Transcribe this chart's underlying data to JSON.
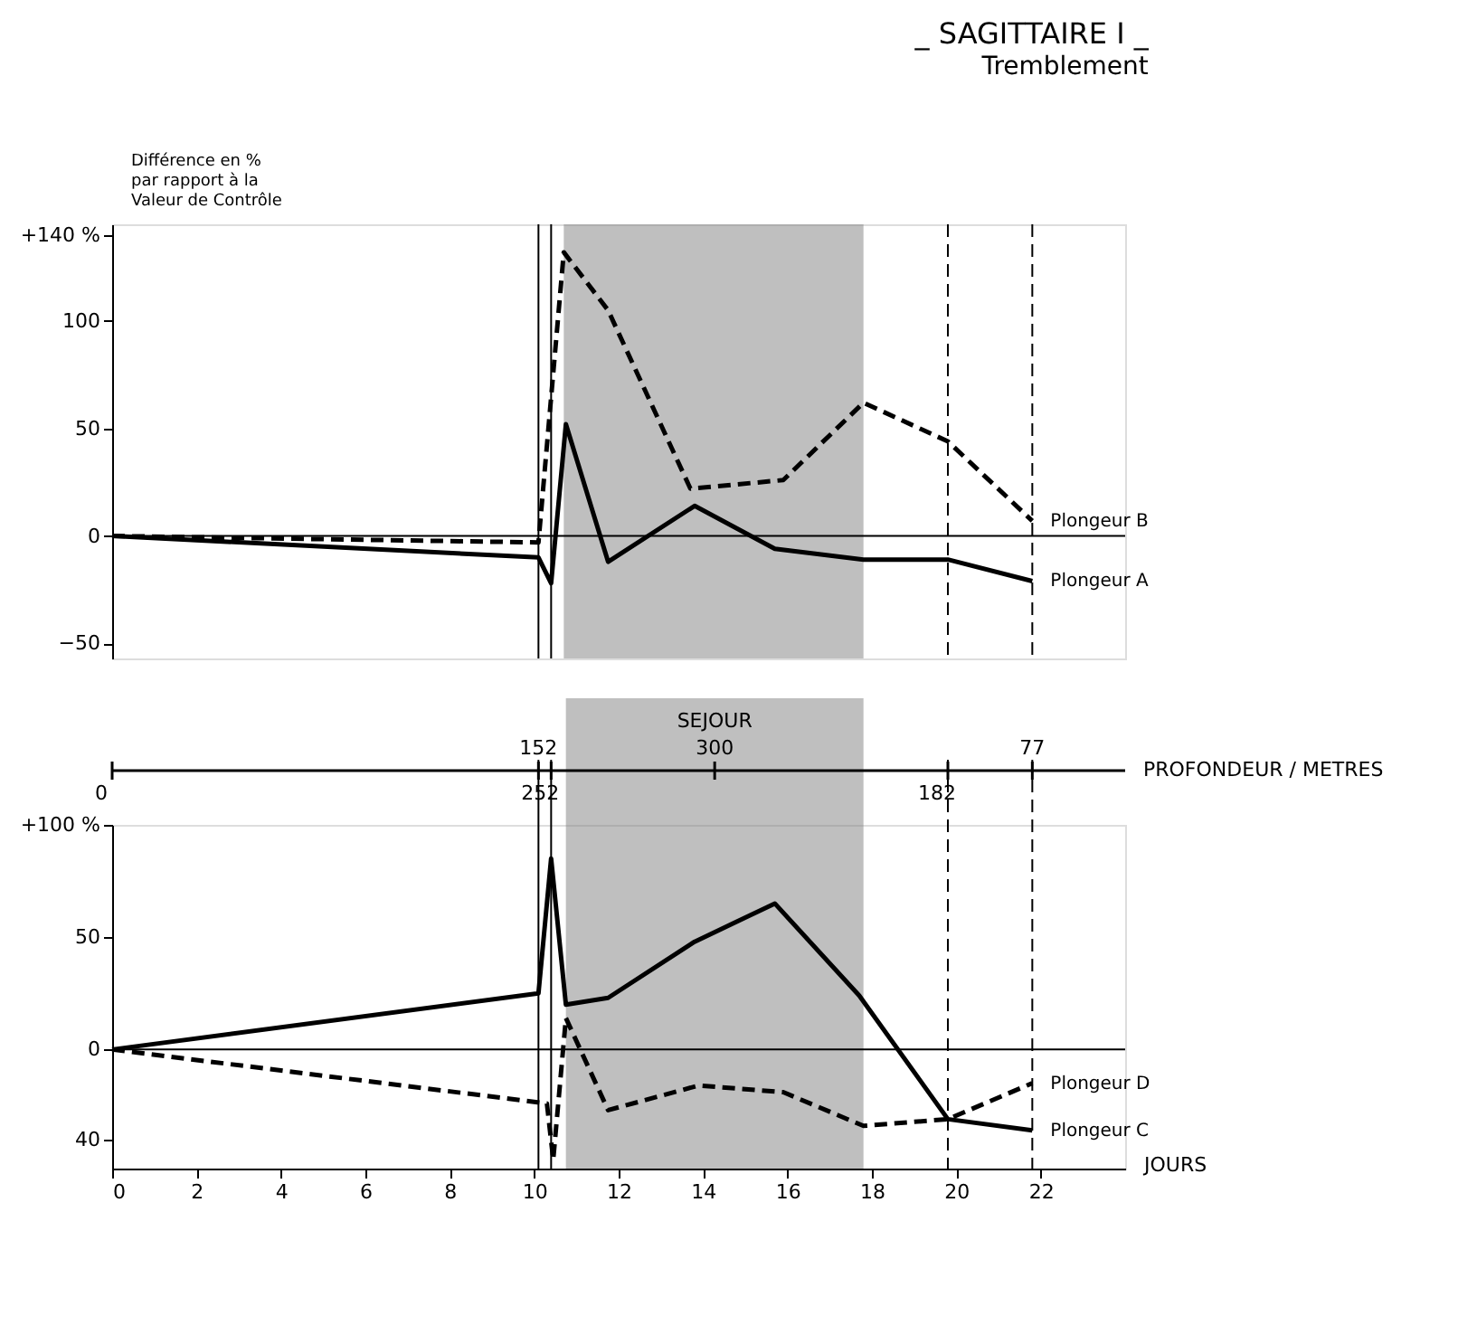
{
  "chart_data": [
    {
      "type": "line",
      "title": "_ SAGITTAIRE I _",
      "subtitle": "Tremblement",
      "ylabel": "Différence en % par rapport à la Valeur de Contrôle",
      "xlim": [
        0,
        24
      ],
      "ylim": [
        -57,
        145
      ],
      "yticks": [
        {
          "value": 140,
          "label": "+140 %"
        },
        100,
        50,
        0,
        -50
      ],
      "tick_labels": "y",
      "series": [
        {
          "name": "Plongeur A",
          "color": "#000000",
          "line_style": "solid",
          "x": [
            0,
            10.1,
            10.4,
            10.75,
            11.75,
            13.8,
            15.7,
            17.8,
            19.8,
            21.8
          ],
          "values": [
            0,
            -10,
            -22,
            52,
            -12,
            14,
            -6,
            -11,
            -11,
            -21
          ]
        },
        {
          "name": "Plongeur B",
          "color": "#000000",
          "line_style": "dashed",
          "x": [
            0,
            10.1,
            10.7,
            11.75,
            13.7,
            15.9,
            17.8,
            19.8,
            21.8
          ],
          "values": [
            0,
            -3,
            132,
            105,
            22,
            26,
            62,
            44,
            7
          ]
        }
      ],
      "bands": [
        {
          "axis": "x",
          "from": 10.7,
          "to": 17.8,
          "color": "#808080"
        }
      ],
      "ref_lines": [
        {
          "axis": "y",
          "value": 0
        },
        {
          "axis": "x",
          "value": 10.1
        },
        {
          "axis": "x",
          "value": 10.4
        },
        {
          "axis": "x",
          "value": 19.8,
          "line_style": "dashed"
        },
        {
          "axis": "x",
          "value": 21.8,
          "line_style": "dashed"
        }
      ]
    },
    {
      "type": "line",
      "xlabel": "JOURS",
      "x2label": "PROFONDEUR / METRES",
      "xlim": [
        0,
        24
      ],
      "xticks": [
        0,
        2,
        4,
        6,
        8,
        10,
        12,
        14,
        16,
        18,
        20,
        22
      ],
      "ylim": [
        -53,
        100
      ],
      "yticks": [
        {
          "value": 100,
          "label": "+100 %"
        },
        50,
        0,
        {
          "value": -40,
          "label": "40"
        }
      ],
      "series": [
        {
          "name": "Plongeur C",
          "color": "#000000",
          "line_style": "solid",
          "x": [
            0,
            10.1,
            10.4,
            10.75,
            11.75,
            13.8,
            15.7,
            17.7,
            19.8,
            21.8
          ],
          "values": [
            0,
            25,
            85,
            20,
            23,
            48,
            65,
            24,
            -31,
            -36
          ]
        },
        {
          "name": "Plongeur D",
          "color": "#000000",
          "line_style": "dashed",
          "x": [
            0,
            10.3,
            10.45,
            10.75,
            11.75,
            13.9,
            15.9,
            17.8,
            19.8,
            21.8
          ],
          "values": [
            0,
            -24,
            -49,
            14,
            -27,
            -16,
            -19,
            -34,
            -31,
            -15
          ]
        }
      ],
      "annotations": [
        "0",
        "152",
        "252",
        "300",
        "182",
        "77"
      ],
      "bands": [
        {
          "axis": "x",
          "from": 10.75,
          "to": 17.8,
          "color": "#808080",
          "label": "SEJOUR"
        }
      ],
      "ref_lines": [
        {
          "axis": "y",
          "value": 0
        },
        {
          "axis": "x",
          "value": 10.1
        },
        {
          "axis": "x",
          "value": 10.4
        },
        {
          "axis": "x",
          "value": 19.8,
          "line_style": "dashed"
        },
        {
          "axis": "x",
          "value": 21.8,
          "line_style": "dashed"
        }
      ]
    }
  ]
}
